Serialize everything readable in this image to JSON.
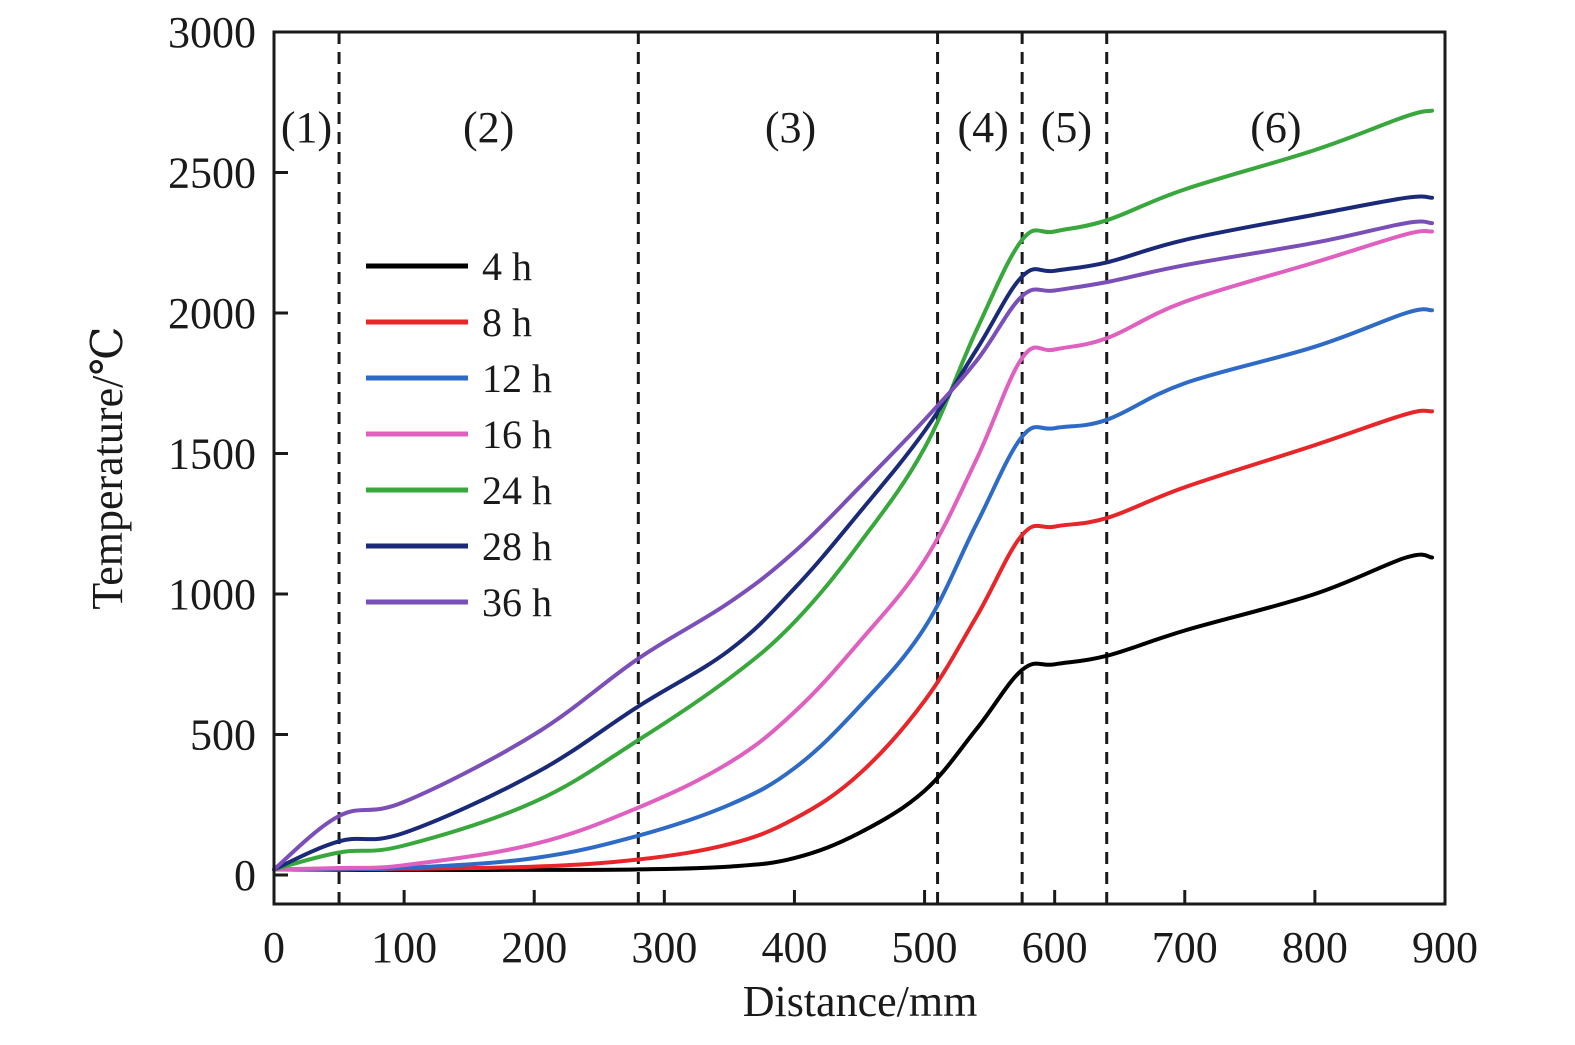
{
  "chart_data": {
    "type": "line",
    "title": "",
    "xlabel": "Distance/mm",
    "ylabel": "Temperature/℃",
    "xlim": [
      0,
      900
    ],
    "ylim": [
      -100,
      3000
    ],
    "xticks": [
      0,
      100,
      200,
      300,
      400,
      500,
      600,
      700,
      800,
      900
    ],
    "yticks": [
      0,
      500,
      1000,
      1500,
      2000,
      2500,
      3000
    ],
    "grid": false,
    "legend_position": "upper-left",
    "region_boundaries": [
      50,
      280,
      510,
      575,
      640
    ],
    "region_labels": [
      {
        "text": "(1)",
        "x": 25
      },
      {
        "text": "(2)",
        "x": 165
      },
      {
        "text": "(3)",
        "x": 397
      },
      {
        "text": "(4)",
        "x": 545
      },
      {
        "text": "(5)",
        "x": 609
      },
      {
        "text": "(6)",
        "x": 770
      }
    ],
    "series": [
      {
        "name": "4 h",
        "color": "#000000",
        "x": [
          0,
          50,
          100,
          200,
          280,
          350,
          400,
          450,
          500,
          540,
          575,
          600,
          640,
          700,
          800,
          870,
          890
        ],
        "y": [
          20,
          18,
          18,
          18,
          20,
          30,
          60,
          150,
          300,
          520,
          730,
          750,
          780,
          870,
          1000,
          1130,
          1130
        ]
      },
      {
        "name": "8 h",
        "color": "#e8262a",
        "x": [
          0,
          50,
          100,
          200,
          280,
          350,
          400,
          450,
          500,
          540,
          575,
          600,
          640,
          700,
          800,
          870,
          890
        ],
        "y": [
          20,
          20,
          22,
          30,
          55,
          110,
          200,
          360,
          620,
          920,
          1210,
          1240,
          1270,
          1380,
          1530,
          1640,
          1650
        ]
      },
      {
        "name": "12 h",
        "color": "#2e6bc6",
        "x": [
          0,
          50,
          100,
          200,
          280,
          350,
          400,
          450,
          500,
          540,
          575,
          600,
          640,
          700,
          800,
          870,
          890
        ],
        "y": [
          20,
          22,
          25,
          60,
          140,
          250,
          380,
          600,
          880,
          1250,
          1560,
          1590,
          1620,
          1750,
          1880,
          2000,
          2010
        ]
      },
      {
        "name": "16 h",
        "color": "#e060c0",
        "x": [
          0,
          50,
          100,
          200,
          280,
          350,
          400,
          450,
          500,
          540,
          575,
          600,
          640,
          700,
          800,
          870,
          890
        ],
        "y": [
          20,
          25,
          35,
          110,
          240,
          400,
          580,
          830,
          1120,
          1480,
          1840,
          1870,
          1910,
          2040,
          2180,
          2280,
          2290
        ]
      },
      {
        "name": "24 h",
        "color": "#38a83c",
        "x": [
          0,
          50,
          100,
          200,
          280,
          350,
          400,
          450,
          500,
          540,
          575,
          600,
          640,
          700,
          800,
          870,
          890
        ],
        "y": [
          20,
          80,
          105,
          260,
          480,
          700,
          900,
          1180,
          1520,
          1940,
          2260,
          2290,
          2330,
          2440,
          2580,
          2700,
          2720
        ]
      },
      {
        "name": "28 h",
        "color": "#1a2a78",
        "x": [
          0,
          50,
          100,
          200,
          280,
          350,
          400,
          450,
          500,
          540,
          575,
          600,
          640,
          700,
          800,
          870,
          890
        ],
        "y": [
          20,
          120,
          150,
          360,
          600,
          800,
          1020,
          1290,
          1580,
          1870,
          2130,
          2150,
          2180,
          2260,
          2350,
          2410,
          2410
        ]
      },
      {
        "name": "36 h",
        "color": "#7a4fb8",
        "x": [
          0,
          50,
          100,
          200,
          280,
          350,
          400,
          450,
          500,
          540,
          575,
          600,
          640,
          700,
          800,
          870,
          890
        ],
        "y": [
          20,
          210,
          260,
          500,
          770,
          970,
          1150,
          1380,
          1620,
          1830,
          2060,
          2080,
          2110,
          2170,
          2250,
          2320,
          2320
        ]
      }
    ]
  }
}
